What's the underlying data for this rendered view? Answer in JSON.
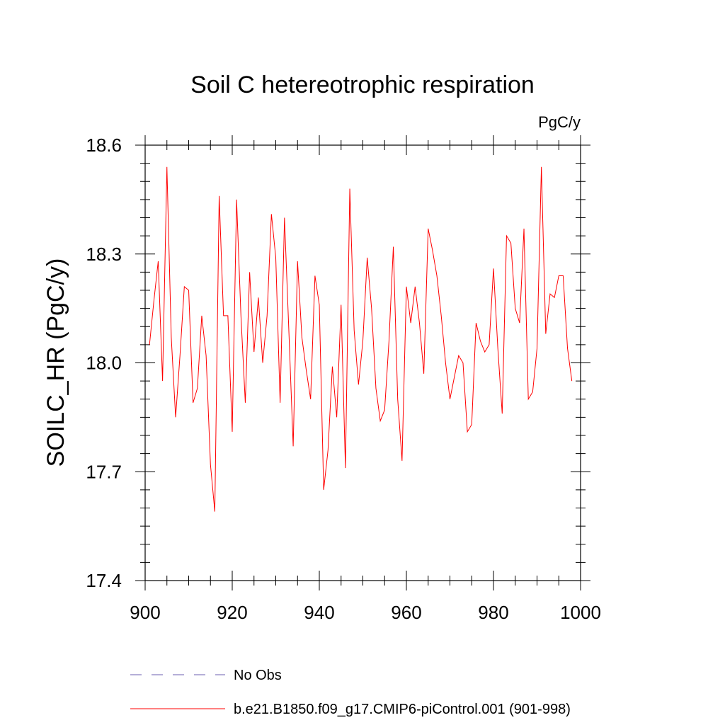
{
  "chart_data": {
    "type": "line",
    "title": "Soil C hetereotrophic respiration",
    "units_label": "PgC/y",
    "ylabel": "SOILC_HR  (PgC/y)",
    "xlabel": "",
    "xlim": [
      900,
      1000
    ],
    "ylim": [
      17.4,
      18.6
    ],
    "xticks": [
      900,
      920,
      940,
      960,
      980,
      1000
    ],
    "xtick_labels": [
      "900",
      "920",
      "940",
      "960",
      "980",
      "1000"
    ],
    "yticks": [
      17.4,
      17.7,
      18.0,
      18.3,
      18.6
    ],
    "ytick_labels": [
      "17.4",
      "17.7",
      "18.0",
      "18.3",
      "18.6"
    ],
    "grid": false,
    "legend": [
      {
        "label": "No Obs",
        "style": "dashed",
        "color": "#6b5fb0"
      },
      {
        "label": "b.e21.B1850.f09_g17.CMIP6-piControl.001 (901-998)",
        "style": "solid",
        "color": "#ff0000"
      }
    ],
    "series": [
      {
        "name": "b.e21.B1850.f09_g17.CMIP6-piControl.001 (901-998)",
        "color": "#ff0000",
        "x": [
          901,
          902,
          903,
          904,
          905,
          906,
          907,
          908,
          909,
          910,
          911,
          912,
          913,
          914,
          915,
          916,
          917,
          918,
          919,
          920,
          921,
          922,
          923,
          924,
          925,
          926,
          927,
          928,
          929,
          930,
          931,
          932,
          933,
          934,
          935,
          936,
          937,
          938,
          939,
          940,
          941,
          942,
          943,
          944,
          945,
          946,
          947,
          948,
          949,
          950,
          951,
          952,
          953,
          954,
          955,
          956,
          957,
          958,
          959,
          960,
          961,
          962,
          963,
          964,
          965,
          966,
          967,
          968,
          969,
          970,
          971,
          972,
          973,
          974,
          975,
          976,
          977,
          978,
          979,
          980,
          981,
          982,
          983,
          984,
          985,
          986,
          987,
          988,
          989,
          990,
          991,
          992,
          993,
          994,
          995,
          996,
          997,
          998
        ],
        "values": [
          18.05,
          18.17,
          18.28,
          17.95,
          18.54,
          18.07,
          17.85,
          18.02,
          18.21,
          18.2,
          17.89,
          17.93,
          18.13,
          18.02,
          17.72,
          17.59,
          18.46,
          18.13,
          18.13,
          17.81,
          18.45,
          18.13,
          17.89,
          18.25,
          18.03,
          18.18,
          18.0,
          18.13,
          18.41,
          18.29,
          17.89,
          18.4,
          18.09,
          17.77,
          18.28,
          18.07,
          17.98,
          17.9,
          18.24,
          18.16,
          17.65,
          17.76,
          17.99,
          17.85,
          18.16,
          17.71,
          18.48,
          18.09,
          17.94,
          18.06,
          18.29,
          18.15,
          17.93,
          17.84,
          17.87,
          18.06,
          18.32,
          17.9,
          17.73,
          18.21,
          18.11,
          18.21,
          18.11,
          17.97,
          18.37,
          18.31,
          18.24,
          18.13,
          18.0,
          17.9,
          17.96,
          18.02,
          18.0,
          17.81,
          17.83,
          18.11,
          18.06,
          18.03,
          18.05,
          18.26,
          18.04,
          17.86,
          18.35,
          18.33,
          18.15,
          18.11,
          18.37,
          17.9,
          17.92,
          18.04,
          18.54,
          18.08,
          18.19,
          18.18,
          18.24,
          18.24,
          18.04,
          17.95
        ]
      }
    ]
  }
}
